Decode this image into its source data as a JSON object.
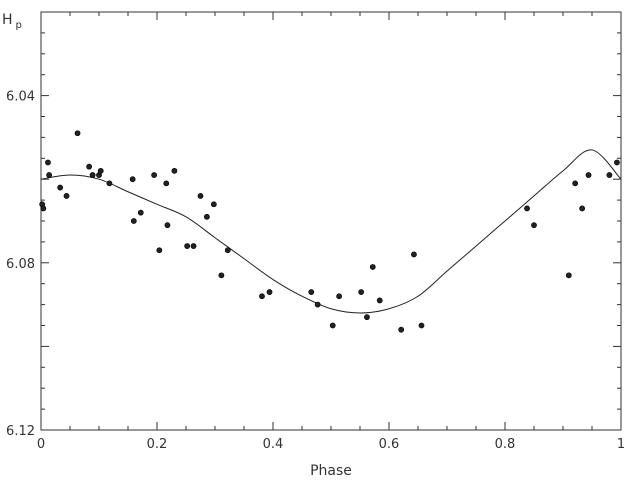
{
  "chart_data": {
    "type": "scatter",
    "title": "",
    "xlabel": "Phase",
    "ylabel": "H",
    "ylabel_subscript": "p",
    "xlim": [
      0,
      1
    ],
    "ylim": [
      6.12,
      6.02
    ],
    "y_inverted": true,
    "grid": false,
    "legend": "none",
    "x_ticks": [
      "0",
      "0.2",
      "0.4",
      "0.6",
      "0.8",
      "1"
    ],
    "y_ticks": [
      "6.04",
      "6.08",
      "6.12"
    ],
    "x_tick_values": [
      0,
      0.2,
      0.4,
      0.6,
      0.8,
      1.0
    ],
    "y_tick_values": [
      6.04,
      6.08,
      6.12
    ],
    "series": [
      {
        "kind": "points",
        "x": [
          0.002,
          0.004,
          0.012,
          0.014,
          0.033,
          0.044,
          0.063,
          0.083,
          0.089,
          0.1,
          0.103,
          0.118,
          0.158,
          0.16,
          0.172,
          0.195,
          0.204,
          0.216,
          0.218,
          0.23,
          0.252,
          0.263,
          0.275,
          0.286,
          0.298,
          0.311,
          0.322,
          0.381,
          0.394,
          0.466,
          0.477,
          0.503,
          0.514,
          0.552,
          0.562,
          0.572,
          0.584,
          0.621,
          0.643,
          0.656,
          0.838,
          0.85,
          0.91,
          0.921,
          0.933,
          0.944,
          0.98,
          0.993
        ],
        "y": [
          6.066,
          6.067,
          6.056,
          6.059,
          6.062,
          6.064,
          6.049,
          6.057,
          6.059,
          6.059,
          6.058,
          6.061,
          6.06,
          6.07,
          6.068,
          6.059,
          6.077,
          6.061,
          6.071,
          6.058,
          6.076,
          6.076,
          6.064,
          6.069,
          6.066,
          6.083,
          6.077,
          6.088,
          6.087,
          6.087,
          6.09,
          6.095,
          6.088,
          6.087,
          6.093,
          6.081,
          6.089,
          6.096,
          6.078,
          6.095,
          6.067,
          6.071,
          6.083,
          6.061,
          6.067,
          6.059,
          6.059,
          6.056
        ]
      },
      {
        "kind": "fit-curve",
        "x": [
          0.0,
          0.05,
          0.1,
          0.15,
          0.2,
          0.25,
          0.3,
          0.35,
          0.4,
          0.45,
          0.5,
          0.55,
          0.6,
          0.65,
          0.7,
          0.75,
          0.8,
          0.85,
          0.9,
          0.95,
          1.0
        ],
        "y": [
          6.06,
          6.059,
          6.06,
          6.063,
          6.066,
          6.069,
          6.074,
          6.079,
          6.084,
          6.088,
          6.091,
          6.092,
          6.091,
          6.088,
          6.082,
          6.076,
          6.07,
          6.064,
          6.058,
          6.053,
          6.06
        ]
      }
    ]
  }
}
